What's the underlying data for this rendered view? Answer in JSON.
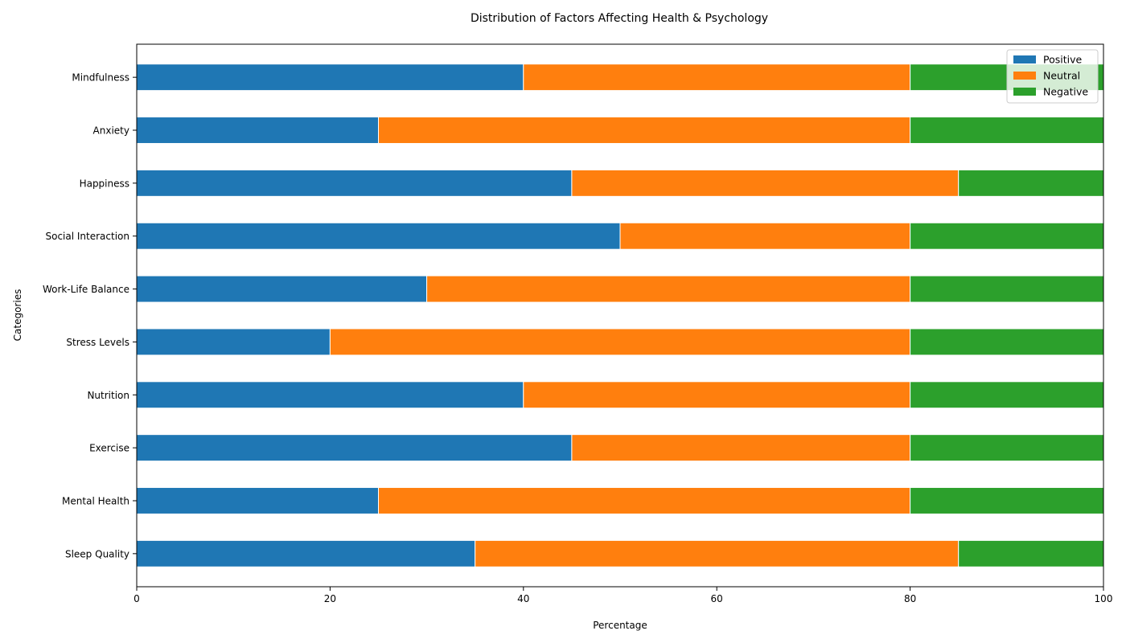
{
  "chart_data": {
    "type": "bar",
    "orientation": "horizontal",
    "stacked": true,
    "title": "Distribution of Factors Affecting Health & Psychology",
    "xlabel": "Percentage",
    "ylabel": "Categories",
    "xlim": [
      0,
      100
    ],
    "xticks": [
      0,
      20,
      40,
      60,
      80,
      100
    ],
    "grid": false,
    "legend_position": "top-right",
    "categories": [
      "Sleep Quality",
      "Mental Health",
      "Exercise",
      "Nutrition",
      "Stress Levels",
      "Work-Life Balance",
      "Social Interaction",
      "Happiness",
      "Anxiety",
      "Mindfulness"
    ],
    "series": [
      {
        "name": "Positive",
        "color": "#1f77b4",
        "values": [
          35,
          25,
          45,
          40,
          20,
          30,
          50,
          45,
          25,
          40
        ]
      },
      {
        "name": "Neutral",
        "color": "#ff7f0e",
        "values": [
          50,
          55,
          35,
          40,
          60,
          50,
          30,
          40,
          55,
          40
        ]
      },
      {
        "name": "Negative",
        "color": "#2ca02c",
        "values": [
          15,
          20,
          20,
          20,
          20,
          20,
          20,
          15,
          20,
          20
        ]
      }
    ]
  }
}
